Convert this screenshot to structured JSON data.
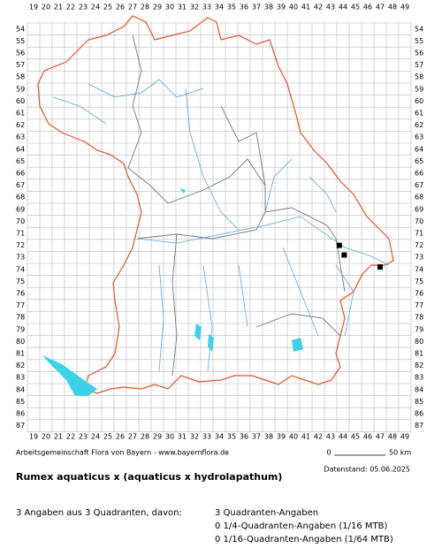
{
  "map": {
    "columns": [
      19,
      20,
      21,
      22,
      23,
      24,
      25,
      26,
      27,
      28,
      29,
      30,
      31,
      32,
      33,
      34,
      35,
      36,
      37,
      38,
      39,
      40,
      41,
      42,
      43,
      44,
      45,
      46,
      47,
      48,
      49
    ],
    "rows": [
      54,
      55,
      56,
      57,
      58,
      59,
      60,
      61,
      62,
      63,
      64,
      65,
      66,
      67,
      68,
      69,
      70,
      71,
      72,
      73,
      74,
      75,
      76,
      77,
      78,
      79,
      80,
      81,
      82,
      83,
      84,
      85,
      86,
      87
    ],
    "points": [
      {
        "x": 43.7,
        "y": 72
      },
      {
        "x": 44.1,
        "y": 72.8
      },
      {
        "x": 47,
        "y": 73.8
      }
    ],
    "credit": "Arbeitsgemeinschaft Flora von Bayern - www.bayernflora.de",
    "scale_start": "0",
    "scale_end": "50 km",
    "date": "Datenstand: 05.06.2025"
  },
  "title": "Rumex aquaticus x (aquaticus x hydrolapathum)",
  "summary": {
    "total": "3 Angaben aus 3 Quadranten, davon:",
    "lines": [
      "3 Quadranten-Angaben",
      "0 1/4-Quadranten-Angaben (1/16 MTB)",
      "0 1/16-Quadranten-Angaben (1/64 MTB)"
    ]
  }
}
